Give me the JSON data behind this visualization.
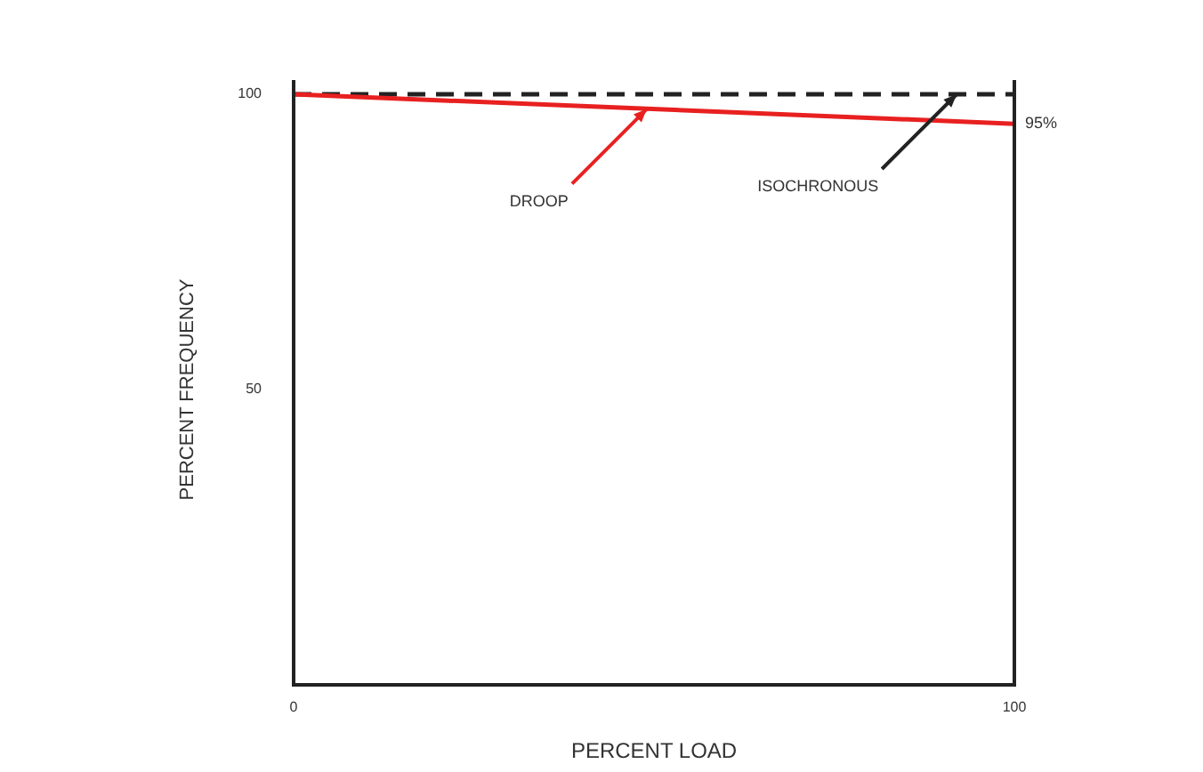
{
  "chart_data": {
    "type": "line",
    "xlabel": "PERCENT LOAD",
    "ylabel": "PERCENT FREQUENCY",
    "xlim": [
      0,
      100
    ],
    "xticks": [
      0,
      100
    ],
    "ylim": [
      0,
      100
    ],
    "yticks": [
      50,
      100
    ],
    "grid": false,
    "legend": false,
    "marker": "none",
    "x": [
      0,
      100
    ],
    "series": [
      {
        "values": [
          100,
          95
        ],
        "color": "#e82020",
        "line_style": "solid",
        "value_labels": [
          null,
          "95%"
        ]
      },
      {
        "values": [
          100,
          100
        ],
        "color": "#222222",
        "line_style": "dashed"
      }
    ],
    "annotations": [
      {
        "text": "DROOP",
        "x": 49,
        "y": 97.5
      },
      {
        "text": "ISOCHRONOUS",
        "x": 92,
        "y": 100
      }
    ]
  }
}
